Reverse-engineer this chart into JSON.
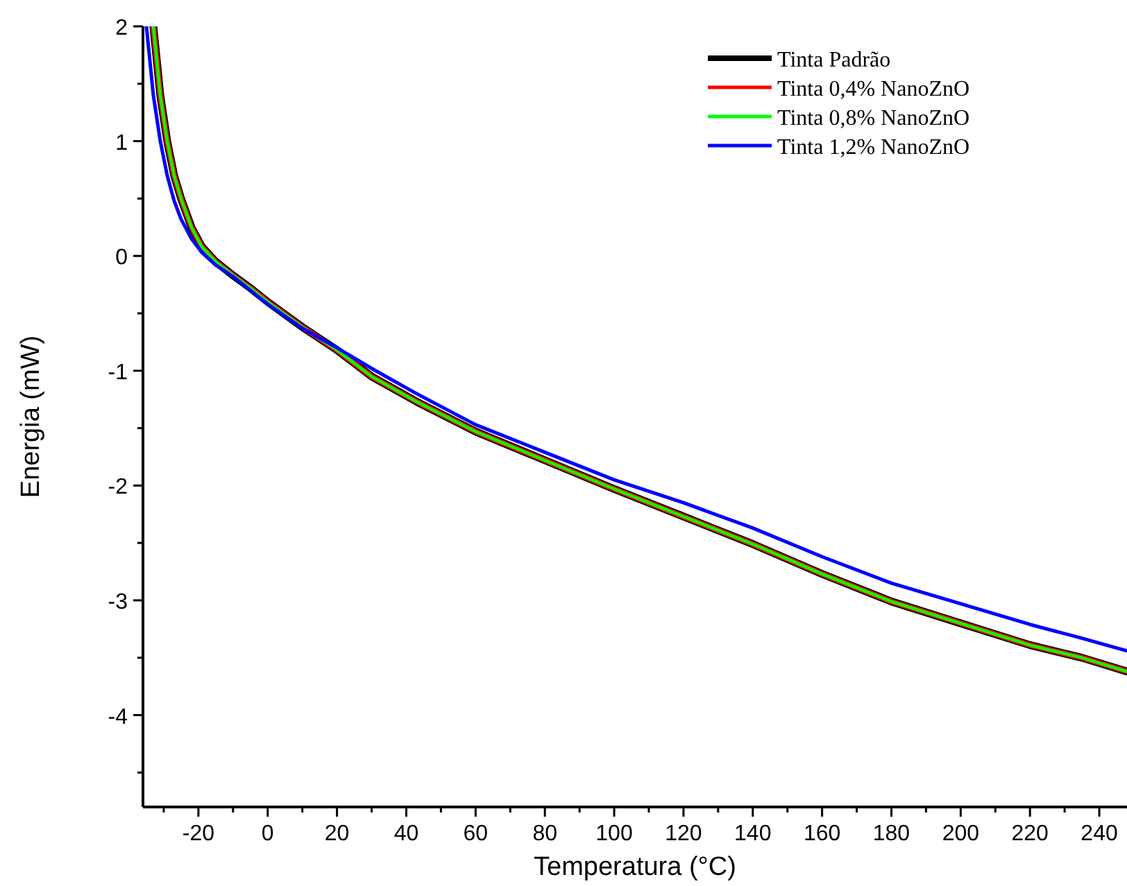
{
  "chart_data": {
    "type": "line",
    "xlabel": "Temperatura (°C)",
    "ylabel": "Energia (mW)",
    "xlim": [
      -36,
      248
    ],
    "ylim": [
      -4.8,
      2
    ],
    "xticks": [
      {
        "value": -30,
        "label": null
      },
      -20,
      {
        "value": -10,
        "label": null
      },
      0,
      {
        "value": 10,
        "label": null
      },
      20,
      {
        "value": 30,
        "label": null
      },
      40,
      {
        "value": 50,
        "label": null
      },
      60,
      {
        "value": 70,
        "label": null
      },
      80,
      {
        "value": 90,
        "label": null
      },
      100,
      {
        "value": 110,
        "label": null
      },
      120,
      {
        "value": 130,
        "label": null
      },
      140,
      {
        "value": 150,
        "label": null
      },
      160,
      {
        "value": 170,
        "label": null
      },
      180,
      {
        "value": 190,
        "label": null
      },
      200,
      {
        "value": 210,
        "label": null
      },
      220,
      {
        "value": 230,
        "label": null
      },
      240
    ],
    "yticks": [
      {
        "value": -4.5,
        "label": null
      },
      -4,
      {
        "value": -3.5,
        "label": null
      },
      -3,
      {
        "value": -2.5,
        "label": null
      },
      -2,
      {
        "value": -1.5,
        "label": null
      },
      -1,
      {
        "value": -0.5,
        "label": null
      },
      0,
      {
        "value": 0.5,
        "label": null
      },
      1,
      {
        "value": 1.5,
        "label": null
      },
      2
    ],
    "grid": false,
    "legend": "top right",
    "marker": "none",
    "line_style": "solid",
    "series": [
      {
        "name": "Tinta Padrão",
        "color": "#000000",
        "x": [
          -33,
          -31,
          -29,
          -27,
          -25,
          -22,
          -19,
          -15,
          -10,
          -5,
          0,
          10,
          20,
          30,
          43,
          60,
          80,
          100,
          120,
          140,
          160,
          180,
          200,
          220,
          235,
          248
        ],
        "values": [
          2.0,
          1.4,
          1.0,
          0.7,
          0.5,
          0.25,
          0.08,
          -0.05,
          -0.17,
          -0.28,
          -0.4,
          -0.62,
          -0.82,
          -1.05,
          -1.27,
          -1.53,
          -1.78,
          -2.03,
          -2.27,
          -2.51,
          -2.77,
          -3.01,
          -3.2,
          -3.39,
          -3.5,
          -3.62
        ]
      },
      {
        "name": "Tinta 0,4% NanoZnO",
        "color": "#ff0000",
        "x": [
          -33,
          -31,
          -29,
          -27,
          -25,
          -22,
          -19,
          -15,
          -10,
          -5,
          0,
          10,
          20,
          30,
          43,
          60,
          80,
          100,
          120,
          140,
          160,
          180,
          200,
          220,
          235,
          248
        ],
        "values": [
          2.0,
          1.4,
          1.0,
          0.7,
          0.5,
          0.25,
          0.08,
          -0.05,
          -0.17,
          -0.28,
          -0.4,
          -0.62,
          -0.82,
          -1.05,
          -1.27,
          -1.53,
          -1.78,
          -2.03,
          -2.27,
          -2.51,
          -2.77,
          -3.01,
          -3.2,
          -3.39,
          -3.5,
          -3.62
        ]
      },
      {
        "name": "Tinta 0,8% NanoZnO",
        "color": "#00ff00",
        "x": [
          -33,
          -31,
          -29,
          -27,
          -25,
          -22,
          -19,
          -15,
          -10,
          -5,
          0,
          10,
          20,
          30,
          43,
          60,
          80,
          100,
          120,
          140,
          160,
          180,
          200,
          220,
          235,
          248
        ],
        "values": [
          2.0,
          1.4,
          1.0,
          0.7,
          0.5,
          0.25,
          0.08,
          -0.05,
          -0.17,
          -0.28,
          -0.4,
          -0.62,
          -0.82,
          -1.05,
          -1.27,
          -1.53,
          -1.78,
          -2.03,
          -2.27,
          -2.51,
          -2.77,
          -3.01,
          -3.2,
          -3.39,
          -3.5,
          -3.62
        ]
      },
      {
        "name": "Tinta 1,2% NanoZnO",
        "color": "#0000ff",
        "x": [
          -35,
          -33,
          -31,
          -29,
          -27,
          -25,
          -22,
          -19,
          -15,
          -10,
          -5,
          0,
          10,
          20,
          30,
          43,
          60,
          80,
          100,
          120,
          140,
          160,
          180,
          200,
          220,
          235,
          248
        ],
        "values": [
          2.0,
          1.4,
          1.0,
          0.7,
          0.48,
          0.32,
          0.15,
          0.03,
          -0.08,
          -0.18,
          -0.3,
          -0.42,
          -0.63,
          -0.8,
          -0.98,
          -1.2,
          -1.47,
          -1.71,
          -1.95,
          -2.15,
          -2.37,
          -2.62,
          -2.85,
          -3.03,
          -3.21,
          -3.33,
          -3.44
        ]
      }
    ]
  }
}
